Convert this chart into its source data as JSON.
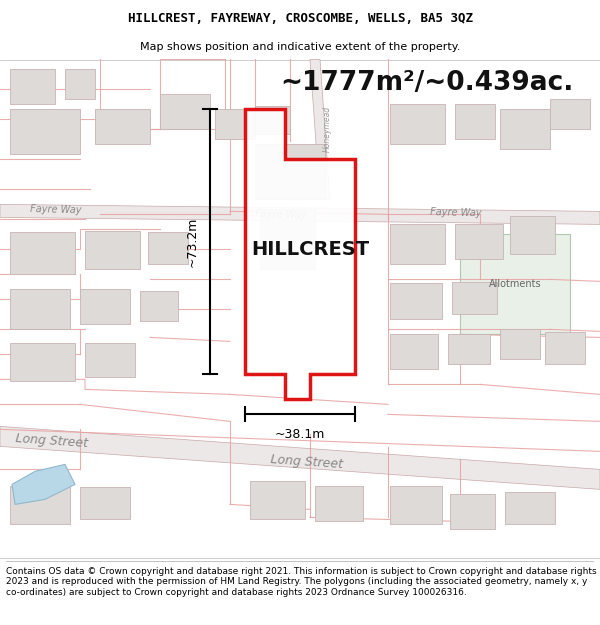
{
  "title_line1": "HILLCREST, FAYREWAY, CROSCOMBE, WELLS, BA5 3QZ",
  "title_line2": "Map shows position and indicative extent of the property.",
  "area_text": "~1777m²/~0.439ac.",
  "property_label": "HILLCREST",
  "dim_width": "~38.1m",
  "dim_height": "~73.2m",
  "allotments_label": "Allotments",
  "footer_text": "Contains OS data © Crown copyright and database right 2021. This information is subject to Crown copyright and database rights 2023 and is reproduced with the permission of HM Land Registry. The polygons (including the associated geometry, namely x, y co-ordinates) are subject to Crown copyright and database rights 2023 Ordnance Survey 100026316.",
  "bg_color": "#ffffff",
  "road_fill": "#f2eeee",
  "road_edge": "#d4a8a8",
  "building_fill": "#dedad8",
  "building_edge": "#c8b4b4",
  "red_line": "#e8a0a0",
  "property_edge": "#dd0000",
  "allotments_fill": "#e8f0e8",
  "water_fill": "#b8d8e8",
  "map_bg": "#faf8f8",
  "title_fontsize": 9,
  "subtitle_fontsize": 8,
  "area_fontsize": 19,
  "label_fontsize": 14,
  "footer_fontsize": 6.5
}
